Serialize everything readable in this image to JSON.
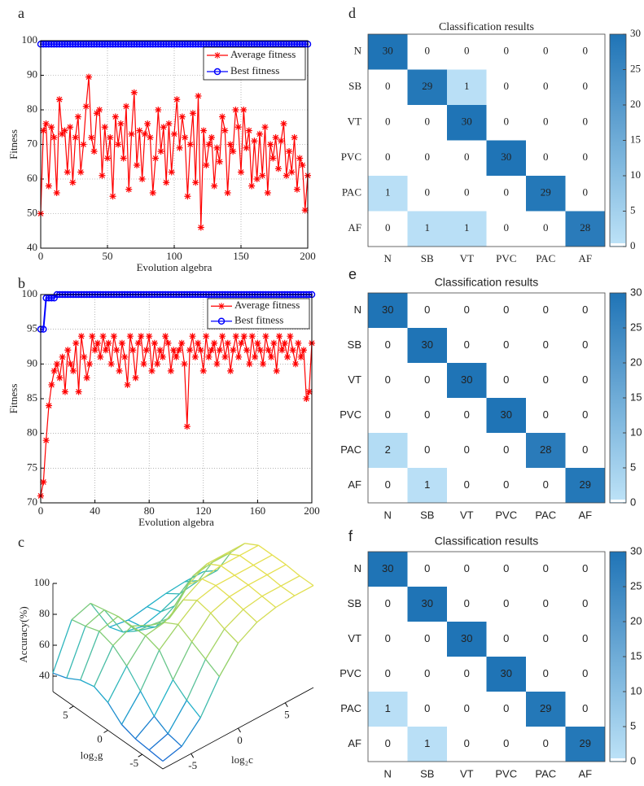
{
  "chart_data": [
    {
      "type": "line",
      "label": "a",
      "xlabel": "Evolution algebra",
      "ylabel": "Fitness",
      "xlim": [
        0,
        200
      ],
      "xticks": [
        0,
        50,
        100,
        150,
        200
      ],
      "ylim": [
        40,
        100
      ],
      "yticks": [
        40,
        50,
        60,
        70,
        80,
        90,
        100
      ],
      "grid": true,
      "legend": "upper right",
      "x": [
        0,
        2,
        4,
        6,
        8,
        10,
        12,
        14,
        16,
        18,
        20,
        22,
        24,
        26,
        28,
        30,
        32,
        34,
        36,
        38,
        40,
        42,
        44,
        46,
        48,
        50,
        52,
        54,
        56,
        58,
        60,
        62,
        64,
        66,
        68,
        70,
        72,
        74,
        76,
        78,
        80,
        82,
        84,
        86,
        88,
        90,
        92,
        94,
        96,
        98,
        100,
        102,
        104,
        106,
        108,
        110,
        112,
        114,
        116,
        118,
        120,
        122,
        124,
        126,
        128,
        130,
        132,
        134,
        136,
        138,
        140,
        142,
        144,
        146,
        148,
        150,
        152,
        154,
        156,
        158,
        160,
        162,
        164,
        166,
        168,
        170,
        172,
        174,
        176,
        178,
        180,
        182,
        184,
        186,
        188,
        190,
        192,
        194,
        196,
        198,
        200
      ],
      "series": [
        {
          "name": "Average fitness",
          "color": "#ff0000",
          "marker": "star",
          "values": [
            50,
            74,
            76,
            58,
            75,
            72,
            56,
            83,
            73,
            74,
            62,
            75,
            59,
            72,
            78,
            62,
            70,
            81,
            89.5,
            72,
            68,
            79,
            80,
            61,
            75,
            66,
            72,
            55,
            78,
            70,
            76,
            66,
            81,
            57,
            73,
            85,
            64,
            74,
            60,
            73,
            76,
            72,
            56,
            66,
            80,
            68,
            75,
            59,
            76,
            62,
            73,
            83,
            69,
            78,
            72,
            55,
            70,
            79,
            59,
            84,
            46,
            74,
            64,
            70,
            72,
            58,
            69,
            65,
            78,
            74,
            56,
            70,
            68,
            80,
            75,
            62,
            80,
            69,
            74,
            58,
            71,
            60,
            73,
            61,
            75,
            56,
            70,
            66,
            72,
            63,
            71,
            76,
            61,
            68,
            62,
            72,
            57,
            66,
            64,
            51,
            61
          ]
        },
        {
          "name": "Best fitness",
          "color": "#0000ff",
          "marker": "circle",
          "values": [
            99,
            99,
            99,
            99,
            99,
            99,
            99,
            99,
            99,
            99,
            99,
            99,
            99,
            99,
            99,
            99,
            99,
            99,
            99,
            99,
            99,
            99,
            99,
            99,
            99,
            99,
            99,
            99,
            99,
            99,
            99,
            99,
            99,
            99,
            99,
            99,
            99,
            99,
            99,
            99,
            99,
            99,
            99,
            99,
            99,
            99,
            99,
            99,
            99,
            99,
            99,
            99,
            99,
            99,
            99,
            99,
            99,
            99,
            99,
            99,
            99,
            99,
            99,
            99,
            99,
            99,
            99,
            99,
            99,
            99,
            99,
            99,
            99,
            99,
            99,
            99,
            99,
            99,
            99,
            99,
            99,
            99,
            99,
            99,
            99,
            99,
            99,
            99,
            99,
            99,
            99,
            99,
            99,
            99,
            99,
            99,
            99,
            99,
            99,
            99,
            99
          ]
        }
      ]
    },
    {
      "type": "line",
      "label": "b",
      "xlabel": "Evolution algebra",
      "ylabel": "Fitness",
      "xlim": [
        0,
        200
      ],
      "xticks": [
        0,
        40,
        80,
        120,
        160,
        200
      ],
      "ylim": [
        70,
        100
      ],
      "yticks": [
        70,
        75,
        80,
        85,
        90,
        95,
        100
      ],
      "grid": true,
      "legend": "upper right",
      "x": [
        0,
        2,
        4,
        6,
        8,
        10,
        12,
        14,
        16,
        18,
        20,
        22,
        24,
        26,
        28,
        30,
        32,
        34,
        36,
        38,
        40,
        42,
        44,
        46,
        48,
        50,
        52,
        54,
        56,
        58,
        60,
        62,
        64,
        66,
        68,
        70,
        72,
        74,
        76,
        78,
        80,
        82,
        84,
        86,
        88,
        90,
        92,
        94,
        96,
        98,
        100,
        102,
        104,
        106,
        108,
        110,
        112,
        114,
        116,
        118,
        120,
        122,
        124,
        126,
        128,
        130,
        132,
        134,
        136,
        138,
        140,
        142,
        144,
        146,
        148,
        150,
        152,
        154,
        156,
        158,
        160,
        162,
        164,
        166,
        168,
        170,
        172,
        174,
        176,
        178,
        180,
        182,
        184,
        186,
        188,
        190,
        192,
        194,
        196,
        198,
        200
      ],
      "series": [
        {
          "name": "Average fitness",
          "color": "#ff0000",
          "marker": "star",
          "values": [
            71,
            73,
            79,
            84,
            87,
            89,
            90,
            88,
            91,
            86,
            92,
            90,
            89,
            93,
            86,
            94,
            91,
            88,
            90,
            94,
            92,
            93,
            91,
            94,
            92,
            93,
            90,
            94,
            92,
            89,
            93,
            91,
            87,
            94,
            92,
            88,
            93,
            94,
            90,
            92,
            94,
            89,
            93,
            90,
            92,
            91,
            94,
            93,
            89,
            92,
            91,
            92,
            93,
            90,
            81,
            92,
            94,
            91,
            93,
            92,
            89,
            94,
            91,
            92,
            93,
            90,
            92,
            94,
            91,
            93,
            89,
            92,
            94,
            91,
            93,
            94,
            92,
            90,
            94,
            91,
            93,
            92,
            90,
            94,
            92,
            91,
            93,
            89,
            94,
            92,
            93,
            91,
            94,
            92,
            90,
            93,
            91,
            92,
            85,
            86,
            93
          ]
        },
        {
          "name": "Best fitness",
          "color": "#0000ff",
          "marker": "circle",
          "values": [
            95,
            95,
            99.5,
            99.5,
            99.5,
            99.5,
            100,
            100,
            100,
            100,
            100,
            100,
            100,
            100,
            100,
            100,
            100,
            100,
            100,
            100,
            100,
            100,
            100,
            100,
            100,
            100,
            100,
            100,
            100,
            100,
            100,
            100,
            100,
            100,
            100,
            100,
            100,
            100,
            100,
            100,
            100,
            100,
            100,
            100,
            100,
            100,
            100,
            100,
            100,
            100,
            100,
            100,
            100,
            100,
            100,
            100,
            100,
            100,
            100,
            100,
            100,
            100,
            100,
            100,
            100,
            100,
            100,
            100,
            100,
            100,
            100,
            100,
            100,
            100,
            100,
            100,
            100,
            100,
            100,
            100,
            100,
            100,
            100,
            100,
            100,
            100,
            100,
            100,
            100,
            100,
            100,
            100,
            100,
            100,
            100,
            100,
            100,
            100,
            100,
            100,
            100
          ]
        }
      ]
    },
    {
      "type": "surface",
      "label": "c",
      "zlabel": "Accuracy(%)",
      "xlabel": "log₂c",
      "ylabel": "log₂g",
      "x": [
        -8,
        -6,
        -4,
        -2,
        0,
        2,
        4,
        6,
        8
      ],
      "y": [
        -8,
        -6,
        -4,
        -2,
        0,
        2,
        4,
        6,
        8
      ],
      "z": [
        [
          35,
          38,
          50,
          70,
          85,
          92,
          95,
          96,
          96
        ],
        [
          36,
          40,
          55,
          75,
          88,
          94,
          96,
          96,
          96
        ],
        [
          37,
          45,
          62,
          80,
          92,
          96,
          97,
          97,
          97
        ],
        [
          40,
          55,
          75,
          85,
          94,
          97,
          97,
          97,
          97
        ],
        [
          48,
          65,
          78,
          80,
          88,
          95,
          97,
          97,
          97
        ],
        [
          52,
          72,
          78,
          72,
          70,
          85,
          92,
          92,
          92
        ],
        [
          50,
          75,
          78,
          62,
          58,
          65,
          78,
          80,
          80
        ],
        [
          45,
          72,
          76,
          55,
          52,
          55,
          60,
          62,
          62
        ],
        [
          42,
          70,
          74,
          52,
          50,
          52,
          54,
          55,
          55
        ]
      ],
      "xlim": [
        -8,
        8
      ],
      "ylim": [
        -8,
        8
      ],
      "zlim": [
        30,
        100
      ],
      "xticks": [
        -5,
        0,
        5
      ],
      "yticks": [
        -5,
        0,
        5
      ],
      "zticks": [
        40,
        60,
        80,
        100
      ],
      "colormap": [
        "#1554d6",
        "#1fb2c8",
        "#8fd06a",
        "#f2e24a"
      ]
    },
    {
      "type": "heatmap",
      "label": "d",
      "title": "Classification results",
      "categories": [
        "N",
        "SB",
        "VT",
        "PVC",
        "PAC",
        "AF"
      ],
      "matrix": [
        [
          30,
          0,
          0,
          0,
          0,
          0
        ],
        [
          0,
          29,
          1,
          0,
          0,
          0
        ],
        [
          0,
          0,
          30,
          0,
          0,
          0
        ],
        [
          0,
          0,
          0,
          30,
          0,
          0
        ],
        [
          1,
          0,
          0,
          0,
          29,
          0
        ],
        [
          0,
          1,
          1,
          0,
          0,
          28
        ]
      ],
      "clim": [
        0,
        30
      ],
      "cticks": [
        0,
        5,
        10,
        15,
        20,
        25,
        30
      ],
      "zero_color": "#ffffff",
      "low_color": "#bee3f8",
      "high_color": "#1f74b6"
    },
    {
      "type": "heatmap",
      "label": "e",
      "title": "Classification results",
      "categories": [
        "N",
        "SB",
        "VT",
        "PVC",
        "PAC",
        "AF"
      ],
      "matrix": [
        [
          30,
          0,
          0,
          0,
          0,
          0
        ],
        [
          0,
          30,
          0,
          0,
          0,
          0
        ],
        [
          0,
          0,
          30,
          0,
          0,
          0
        ],
        [
          0,
          0,
          0,
          30,
          0,
          0
        ],
        [
          2,
          0,
          0,
          0,
          28,
          0
        ],
        [
          0,
          1,
          0,
          0,
          0,
          29
        ]
      ],
      "clim": [
        0,
        30
      ],
      "cticks": [
        0,
        5,
        10,
        15,
        20,
        25,
        30
      ],
      "zero_color": "#ffffff",
      "low_color": "#bee3f8",
      "high_color": "#1f74b6"
    },
    {
      "type": "heatmap",
      "label": "f",
      "title": "Classification results",
      "categories": [
        "N",
        "SB",
        "VT",
        "PVC",
        "PAC",
        "AF"
      ],
      "matrix": [
        [
          30,
          0,
          0,
          0,
          0,
          0
        ],
        [
          0,
          30,
          0,
          0,
          0,
          0
        ],
        [
          0,
          0,
          30,
          0,
          0,
          0
        ],
        [
          0,
          0,
          0,
          30,
          0,
          0
        ],
        [
          1,
          0,
          0,
          0,
          29,
          0
        ],
        [
          0,
          1,
          0,
          0,
          0,
          29
        ]
      ],
      "clim": [
        0,
        30
      ],
      "cticks": [
        0,
        5,
        10,
        15,
        20,
        25,
        30
      ],
      "zero_color": "#ffffff",
      "low_color": "#bee3f8",
      "high_color": "#1f74b6"
    }
  ]
}
